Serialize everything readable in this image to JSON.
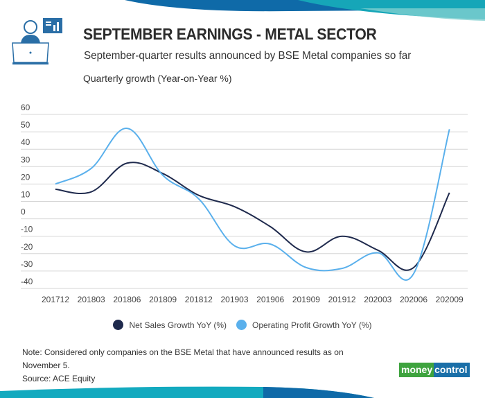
{
  "header": {
    "title": "SEPTEMBER EARNINGS - METAL SECTOR",
    "subtitle": "September-quarter results announced by BSE Metal companies so far",
    "icon": "analyst-laptop-chart-icon"
  },
  "chart_data": {
    "type": "line",
    "title": "SEPTEMBER EARNINGS - METAL SECTOR",
    "ylabel": "Quarterly growth (Year-on-Year %)",
    "xlabel": "",
    "ylim": [
      -40,
      60
    ],
    "yticks": [
      "60",
      "50",
      "40",
      "30",
      "20",
      "10",
      "0",
      "-10",
      "-20",
      "-30",
      "-40"
    ],
    "grid": true,
    "legend_position": "bottom",
    "categories": [
      "201712",
      "201803",
      "201806",
      "201809",
      "201812",
      "201903",
      "201906",
      "201909",
      "201912",
      "202003",
      "202006",
      "202009"
    ],
    "series": [
      {
        "name": "Net Sales Growth YoY (%)",
        "color": "#1f2a4d",
        "values": [
          17,
          15.5,
          32,
          26,
          13.5,
          7,
          -4.5,
          -19,
          -10,
          -18,
          -28,
          15
        ]
      },
      {
        "name": "Operating Profit Growth YoY (%)",
        "color": "#5ab0ec",
        "values": [
          20,
          29,
          52,
          25,
          11.5,
          -15.5,
          -14.5,
          -28,
          -28.5,
          -19.5,
          -31.5,
          51.5
        ]
      }
    ]
  },
  "footer": {
    "note": "Note: Considered only companies on the BSE Metal that have announced results as on November 5.",
    "source": "Source: ACE Equity",
    "logo_left": "money",
    "logo_right": "control"
  }
}
